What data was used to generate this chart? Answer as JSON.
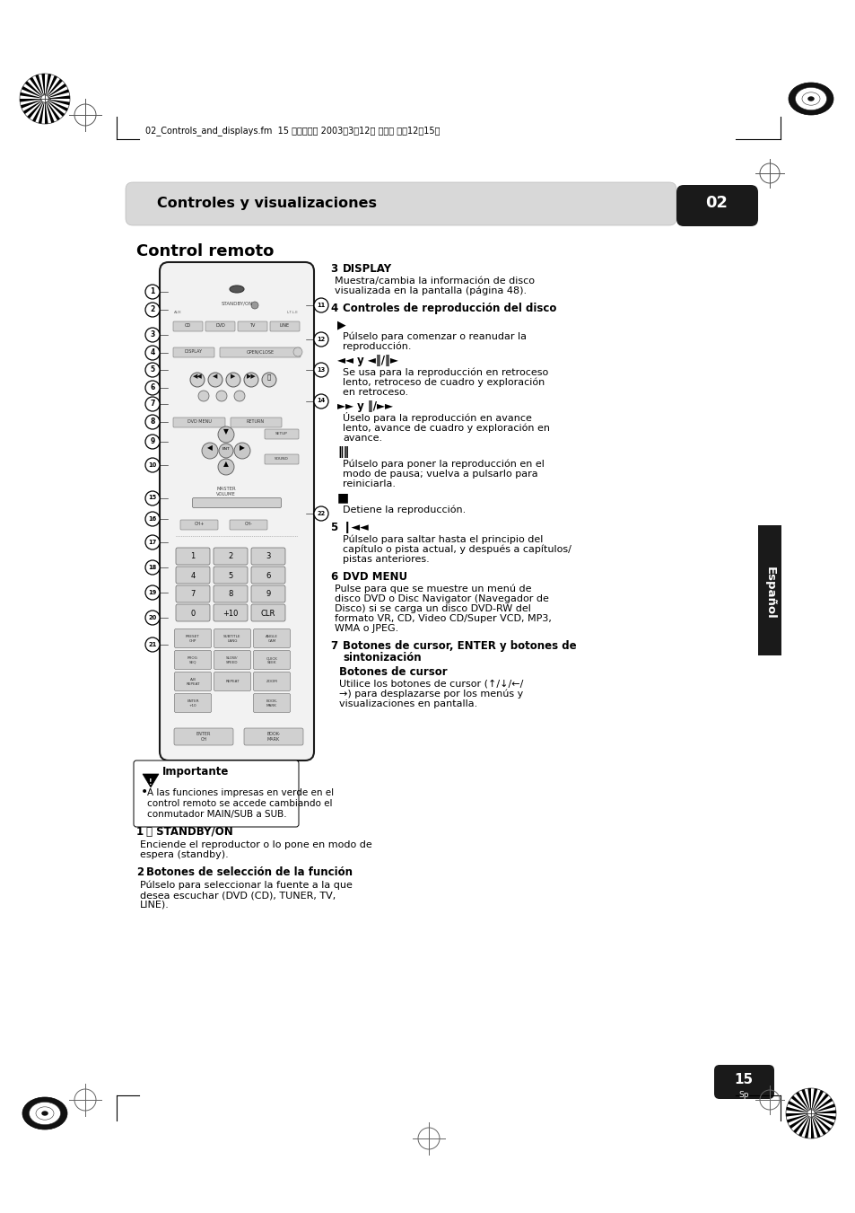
{
  "bg_color": "#ffffff",
  "header_text": "Controles y visualizaciones",
  "header_num": "02",
  "title_left": "Control remoto",
  "file_info": "02_Controls_and_displays.fm  15 ページ　　 2003年3月12日 水曜日 午前12時15分",
  "page_num": "15",
  "side_label": "Español",
  "important_text": "Importante",
  "imp_line1": "A las funciones impresas en verde en el",
  "imp_line2": "control remoto se accede cambiando el",
  "imp_line3": "conmutador MAIN/SUB a SUB.",
  "s1_num": "1",
  "s1_title": "⭘ STANDBY/ON",
  "s1_b1": "Enciende el reproductor o lo pone en modo de",
  "s1_b2": "espera (standby).",
  "s2_num": "2",
  "s2_title": "Botones de selección de la función",
  "s2_b1": "Púlselo para seleccionar la fuente a la que",
  "s2_b2": "desea escuchar (DVD (CD), TUNER, TV,",
  "s2_b3": "LINE).",
  "s3_num": "3",
  "s3_title": "DISPLAY",
  "s3_b1": "Muestra/cambia la información de disco",
  "s3_b2": "visualizada en la pantalla (página 48).",
  "s4_num": "4",
  "s4_title": "Controles de reproducción del disco",
  "s4a_sym": "▶",
  "s4a_b1": "Púlselo para comenzar o reanudar la",
  "s4a_b2": "reproducción.",
  "s4b_sym": "◄◄ y ◄‖/‖►",
  "s4b_b1": "Se usa para la reproducción en retroceso",
  "s4b_b2": "lento, retroceso de cuadro y exploración",
  "s4b_b3": "en retroceso.",
  "s4c_sym": "►► y ‖/►►",
  "s4c_b1": "Úselo para la reproducción en avance",
  "s4c_b2": "lento, avance de cuadro y exploración en",
  "s4c_b3": "avance.",
  "s4d_sym": "‖‖",
  "s4d_b1": "Púlselo para poner la reproducción en el",
  "s4d_b2": "modo de pausa; vuelva a pulsarlo para",
  "s4d_b3": "reiniciarla.",
  "s4e_sym": "■",
  "s4e_b1": "Detiene la reproducción.",
  "s5_num": "5",
  "s5_sym": "❙◄◄",
  "s5_b1": "Púlselo para saltar hasta el principio del",
  "s5_b2": "capítulo o pista actual, y después a capítulos/",
  "s5_b3": "pistas anteriores.",
  "s6_num": "6",
  "s6_title": "DVD MENU",
  "s6_b1": "Pulse para que se muestre un menú de",
  "s6_b2": "disco DVD o Disc Navigator (Navegador de",
  "s6_b3": "Disco) si se carga un disco DVD-RW del",
  "s6_b4": "formato VR, CD, Video CD/Super VCD, MP3,",
  "s6_b5": "WMA o JPEG.",
  "s7_num": "7",
  "s7_title1": "Botones de cursor, ENTER y botones de",
  "s7_title2": "sintonización",
  "s7_sub": "Botones de cursor",
  "s7_b1": "Utilice los botones de cursor (↑/↓/←/",
  "s7_b2": "→) para desplazarse por los menús y",
  "s7_b3": "visualizaciones en pantalla."
}
